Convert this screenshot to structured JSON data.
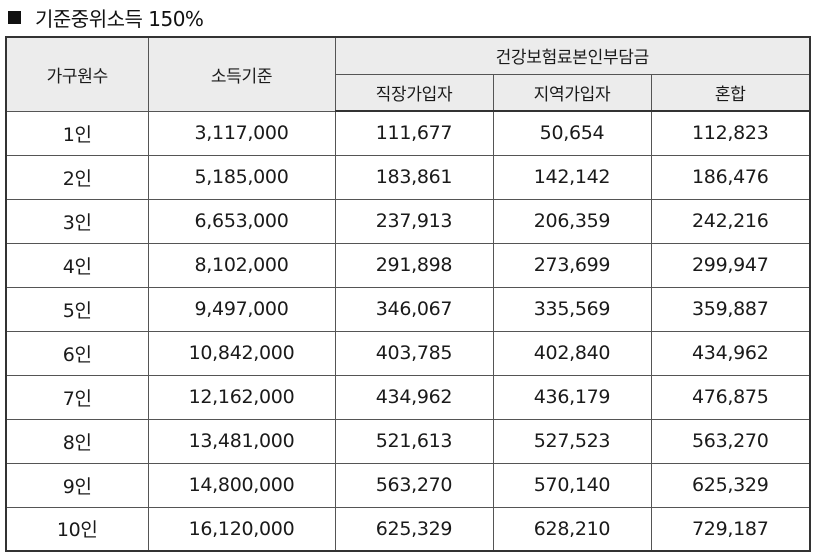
{
  "title": "기준중위소득 150%",
  "headers": {
    "household": "가구원수",
    "income": "소득기준",
    "premium_group": "건강보험료본인부담금",
    "employee": "직장가입자",
    "regional": "지역가입자",
    "mixed": "혼합"
  },
  "rows": [
    {
      "household": "1인",
      "income": "3,117,000",
      "employee": "111,677",
      "regional": "50,654",
      "mixed": "112,823"
    },
    {
      "household": "2인",
      "income": "5,185,000",
      "employee": "183,861",
      "regional": "142,142",
      "mixed": "186,476"
    },
    {
      "household": "3인",
      "income": "6,653,000",
      "employee": "237,913",
      "regional": "206,359",
      "mixed": "242,216"
    },
    {
      "household": "4인",
      "income": "8,102,000",
      "employee": "291,898",
      "regional": "273,699",
      "mixed": "299,947"
    },
    {
      "household": "5인",
      "income": "9,497,000",
      "employee": "346,067",
      "regional": "335,569",
      "mixed": "359,887"
    },
    {
      "household": "6인",
      "income": "10,842,000",
      "employee": "403,785",
      "regional": "402,840",
      "mixed": "434,962"
    },
    {
      "household": "7인",
      "income": "12,162,000",
      "employee": "434,962",
      "regional": "436,179",
      "mixed": "476,875"
    },
    {
      "household": "8인",
      "income": "13,481,000",
      "employee": "521,613",
      "regional": "527,523",
      "mixed": "563,270"
    },
    {
      "household": "9인",
      "income": "14,800,000",
      "employee": "563,270",
      "regional": "570,140",
      "mixed": "625,329"
    },
    {
      "household": "10인",
      "income": "16,120,000",
      "employee": "625,329",
      "regional": "628,210",
      "mixed": "729,187"
    }
  ]
}
